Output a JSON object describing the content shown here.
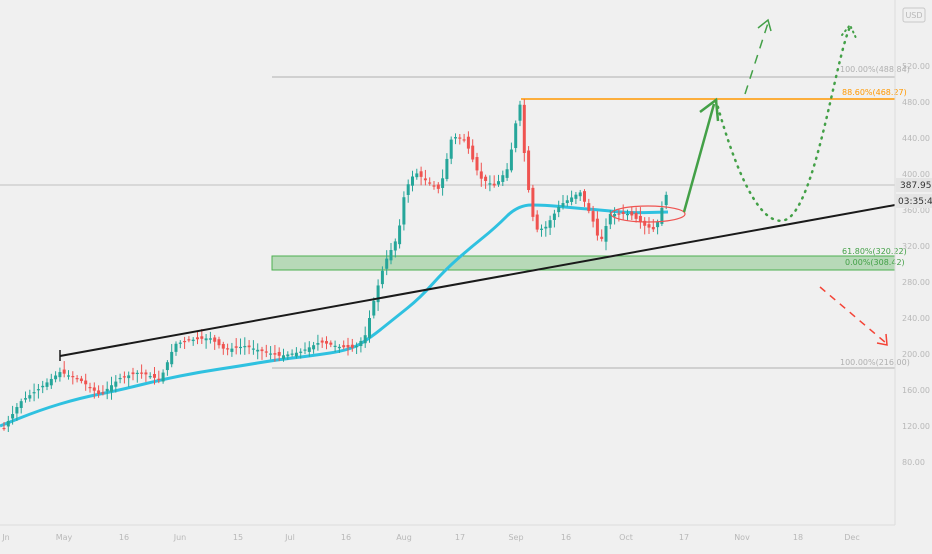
{
  "currency_badge": "USD",
  "chart_data": {
    "type": "candlestick",
    "price_axis_ticks": [
      {
        "value": 520,
        "label": "520.00"
      },
      {
        "value": 480,
        "label": "480.00"
      },
      {
        "value": 440,
        "label": "440.00"
      },
      {
        "value": 400,
        "label": "400.00"
      },
      {
        "value": 360,
        "label": "360.00"
      },
      {
        "value": 320,
        "label": "320.00"
      },
      {
        "value": 280,
        "label": "280.00"
      },
      {
        "value": 240,
        "label": "240.00"
      },
      {
        "value": 200,
        "label": "200.00"
      },
      {
        "value": 160,
        "label": "160.00"
      },
      {
        "value": 120,
        "label": "120.00"
      },
      {
        "value": 80,
        "label": "80.00"
      }
    ],
    "time_axis_ticks": [
      "Jn",
      "May",
      "16",
      "Jun",
      "15",
      "Jul",
      "16",
      "Aug",
      "17",
      "Sep",
      "16",
      "Oct",
      "17",
      "Nov",
      "18",
      "Dec"
    ],
    "current_price": {
      "value": 387.95,
      "label": "387.95"
    },
    "countdown": "03:35:47",
    "fibonacci_levels": [
      {
        "ratio": "100.00%",
        "price": 488.84,
        "label": "100.00%(488.84)"
      },
      {
        "ratio": "88.60%",
        "price": 468.27,
        "label": "88.60%(468.27)"
      },
      {
        "ratio": "61.80%",
        "price": 320.22,
        "label": "61.80%(320.22)"
      },
      {
        "ratio": "0.00%",
        "price": 308.42,
        "label": "0.00%(308.42)"
      },
      {
        "ratio": "100.00%",
        "price": 216.0,
        "label": "100.00%(216.00)"
      }
    ],
    "support_zone": {
      "top": 320.2,
      "bottom": 308.4
    },
    "moving_average": "MA",
    "colors": {
      "up_candle": "#26a69a",
      "down_candle": "#ef5350",
      "moving_average": "#2fc1e0",
      "trendline": "#1a1a1a",
      "support_zone": "#4caf50",
      "fib_orange": "#ff9800",
      "projection_up": "#4caf50",
      "projection_down": "#f44336",
      "background": "#f0f0f0"
    }
  }
}
